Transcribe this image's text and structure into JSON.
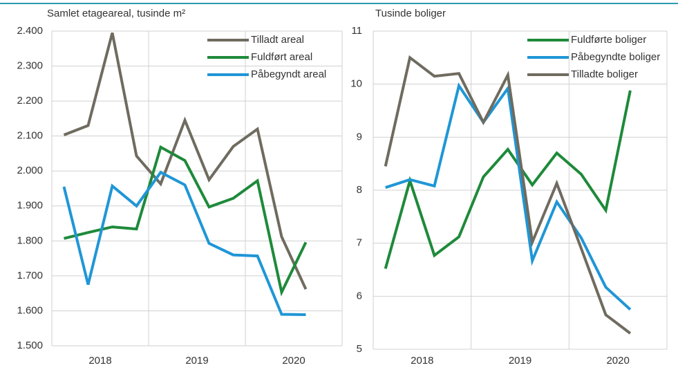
{
  "chart_data": [
    {
      "type": "line",
      "title": "Samlet etageareal, tusinde m²",
      "categories": [
        "2018",
        null,
        null,
        null,
        "2019",
        null,
        null,
        null,
        "2020",
        null,
        null,
        null
      ],
      "series": [
        {
          "name": "Tilladt areal",
          "color": "#6f6b5f",
          "values": [
            2103,
            2130,
            2395,
            2043,
            1963,
            2145,
            1975,
            2070,
            2120,
            1812,
            1662,
            null
          ]
        },
        {
          "name": "Fuldført areal",
          "color": "#1e8a3a",
          "values": [
            1807,
            1824,
            1840,
            1834,
            2068,
            2030,
            1897,
            1922,
            1972,
            1653,
            1796,
            null
          ]
        },
        {
          "name": "Påbegyndt areal",
          "color": "#1f96d6",
          "values": [
            1955,
            1675,
            1957,
            1900,
            1996,
            1960,
            1793,
            1760,
            1757,
            1590,
            1589,
            null
          ]
        }
      ],
      "ylim": [
        1500,
        2400
      ],
      "yticks": [
        {
          "value": 1500,
          "label": "1.500"
        },
        {
          "value": 1600,
          "label": "1.600"
        },
        {
          "value": 1700,
          "label": "1.700"
        },
        {
          "value": 1800,
          "label": "1.800"
        },
        {
          "value": 1900,
          "label": "1.900"
        },
        {
          "value": 2000,
          "label": "2.000"
        },
        {
          "value": 2100,
          "label": "2.100"
        },
        {
          "value": 2200,
          "label": "2.200"
        },
        {
          "value": 2300,
          "label": "2.300"
        },
        {
          "value": 2400,
          "label": "2.400"
        }
      ],
      "grid": true
    },
    {
      "type": "line",
      "title": "Tusinde boliger",
      "categories": [
        "2018",
        null,
        null,
        null,
        "2019",
        null,
        null,
        null,
        "2020",
        null,
        null,
        null
      ],
      "series": [
        {
          "name": "Fuldførte boliger",
          "color": "#1e8a3a",
          "values": [
            6.52,
            8.18,
            6.77,
            7.12,
            8.25,
            8.77,
            8.1,
            8.7,
            8.3,
            7.62,
            9.88,
            null
          ]
        },
        {
          "name": "Påbegyndte boliger",
          "color": "#1f96d6",
          "values": [
            8.05,
            8.2,
            8.08,
            9.97,
            9.28,
            9.92,
            6.67,
            7.78,
            7.1,
            6.17,
            5.75,
            null
          ]
        },
        {
          "name": "Tilladte boliger",
          "color": "#6f6b5f",
          "values": [
            8.45,
            10.5,
            10.15,
            10.2,
            9.28,
            10.17,
            7.02,
            8.13,
            6.9,
            5.65,
            5.3,
            null
          ]
        }
      ],
      "ylim": [
        5,
        11
      ],
      "yticks": [
        5,
        6,
        7,
        8,
        9,
        10,
        11
      ],
      "grid": true
    }
  ]
}
